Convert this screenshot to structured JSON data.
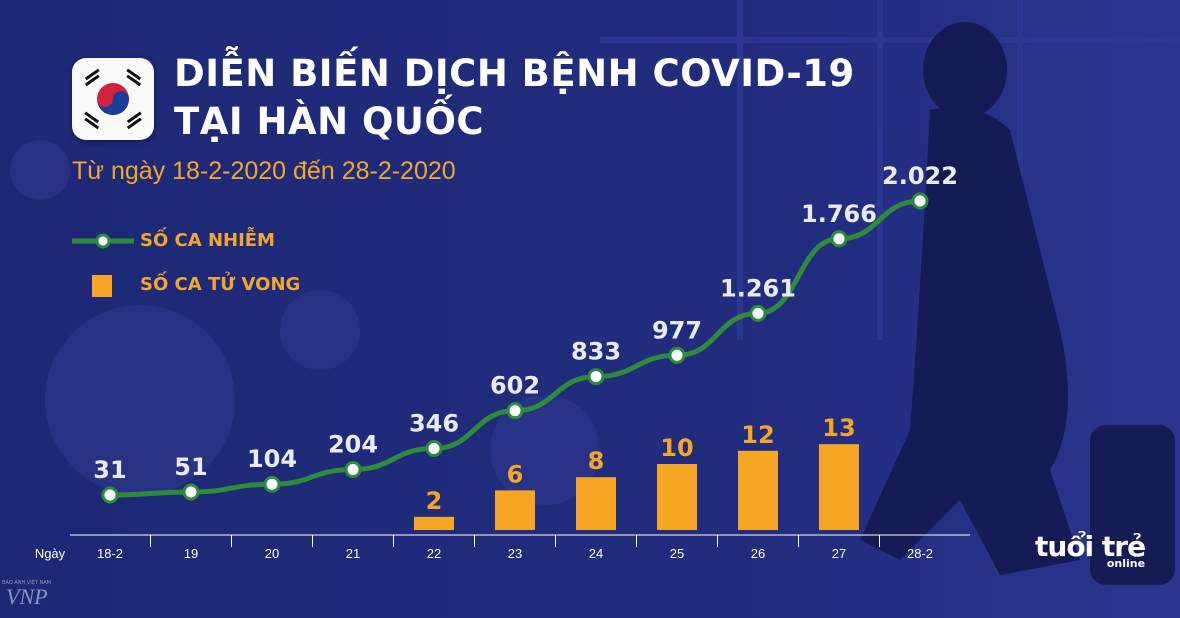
{
  "header": {
    "title_line1": "DIỄN BIẾN DỊCH BỆNH COVID-19",
    "title_line2": "TẠI HÀN QUỐC",
    "subtitle": "Từ ngày 18-2-2020 đến 28-2-2020"
  },
  "legend": {
    "infected": "SỐ CA NHIỄM",
    "deaths": "SỐ CA TỬ VONG"
  },
  "axis": {
    "x_label": "Ngày"
  },
  "branding": {
    "logo_main": "tuổi trẻ",
    "logo_sub": "online",
    "agency": "VNP",
    "agency_top": "BÁO ẢNH VIỆT NAM"
  },
  "colors": {
    "background": "#1f2a78",
    "line": "#2e8b3a",
    "bar": "#f6a623",
    "label": "#ffffff",
    "accent": "#f2a72c"
  },
  "chart_data": {
    "type": "bar",
    "categories": [
      "18-2",
      "19",
      "20",
      "21",
      "22",
      "23",
      "24",
      "25",
      "26",
      "27",
      "28-2"
    ],
    "series": [
      {
        "name": "SỐ CA NHIỄM",
        "type": "line",
        "values": [
          31,
          51,
          104,
          204,
          346,
          602,
          833,
          977,
          1261,
          1766,
          2022
        ],
        "labels": [
          "31",
          "51",
          "104",
          "204",
          "346",
          "602",
          "833",
          "977",
          "1.261",
          "1.766",
          "2.022"
        ]
      },
      {
        "name": "SỐ CA TỬ VONG",
        "type": "bar",
        "values": [
          null,
          null,
          null,
          null,
          2,
          6,
          8,
          10,
          12,
          13,
          null
        ],
        "labels": [
          "",
          "",
          "",
          "",
          "2",
          "6",
          "8",
          "10",
          "12",
          "13",
          ""
        ]
      }
    ]
  }
}
